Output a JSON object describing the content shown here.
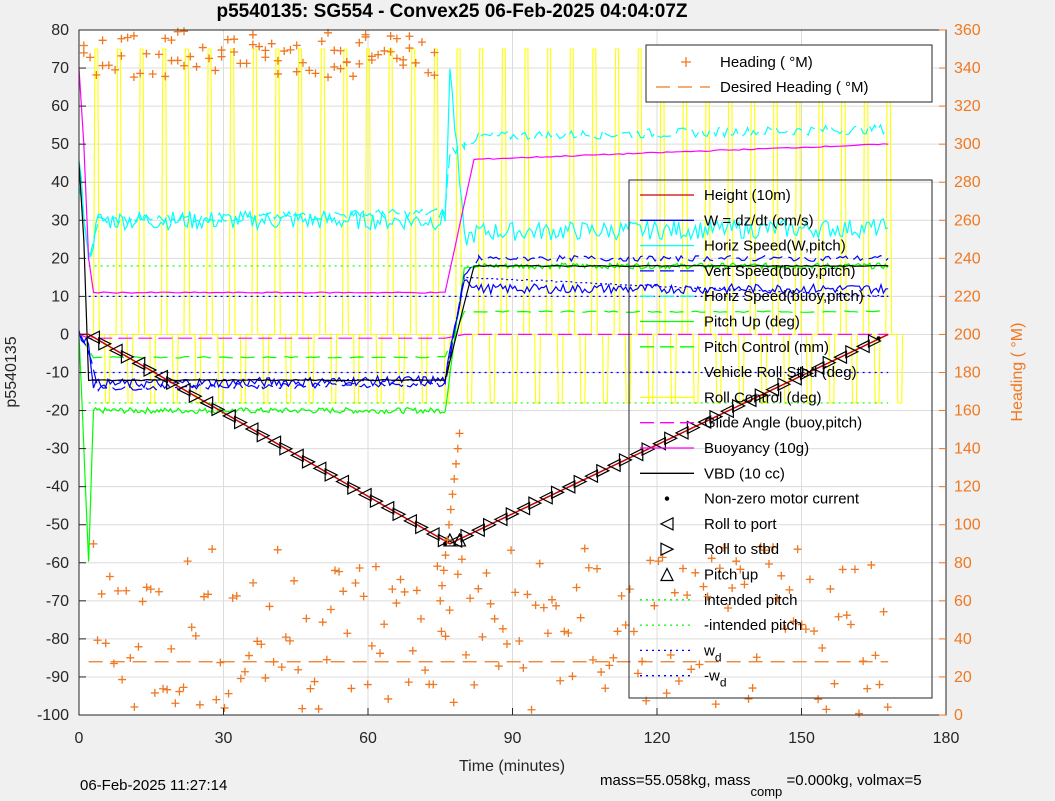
{
  "chart_data": {
    "type": "line",
    "title": "p5540135: SG554 - Convex25 06-Feb-2025 04:04:07Z",
    "xlabel": "Time (minutes)",
    "ylabel": "p5540135",
    "y2label": "Heading (  °M)",
    "xlim": [
      0,
      180
    ],
    "ylim": [
      -100,
      80
    ],
    "y2lim": [
      0,
      360
    ],
    "xticks": [
      0,
      30,
      60,
      90,
      120,
      150,
      180
    ],
    "yticks": [
      -100,
      -90,
      -80,
      -70,
      -60,
      -50,
      -40,
      -30,
      -20,
      -10,
      0,
      10,
      20,
      30,
      40,
      50,
      60,
      70,
      80
    ],
    "y2ticks": [
      0,
      20,
      40,
      60,
      80,
      100,
      120,
      140,
      160,
      180,
      200,
      220,
      240,
      260,
      280,
      300,
      320,
      340,
      360
    ],
    "grid": true,
    "heading_legend": [
      {
        "label": "Heading (  °M)",
        "color": "#f07820",
        "style": "plus"
      },
      {
        "label": "Desired Heading (   °M)",
        "color": "#f07820",
        "style": "dash"
      }
    ],
    "legend": [
      {
        "label": "Height (10m)",
        "color": "#d00000",
        "style": "solid"
      },
      {
        "label": "W = dz/dt (cm/s)",
        "color": "#0000ff",
        "style": "solid"
      },
      {
        "label": "Horiz Speed(W,pitch)",
        "color": "#00ffff",
        "style": "solid"
      },
      {
        "label": "Vert Speed(buoy,pitch)",
        "color": "#0000ff",
        "style": "dash"
      },
      {
        "label": "Horiz Speed(buoy,pitch)",
        "color": "#00ffff",
        "style": "dash"
      },
      {
        "label": "Pitch Up (deg)",
        "color": "#00ff00",
        "style": "solid"
      },
      {
        "label": "Pitch Control (mm)",
        "color": "#00ff00",
        "style": "dash"
      },
      {
        "label": "Vehicle Roll Stbd (deg)",
        "color": "#0000ff",
        "style": "dot"
      },
      {
        "label": "Roll Control (deg)",
        "color": "#ffff00",
        "style": "solid"
      },
      {
        "label": "Glide Angle (buoy,pitch)",
        "color": "#ff00ff",
        "style": "dash"
      },
      {
        "label": "Buoyancy (10g)",
        "color": "#ff00ff",
        "style": "solid"
      },
      {
        "label": "VBD (10 cc)",
        "color": "#000000",
        "style": "solid"
      },
      {
        "label": "Non-zero motor current",
        "color": "#000000",
        "style": "point"
      },
      {
        "label": "Roll to port",
        "color": "#000000",
        "style": "triangle-left"
      },
      {
        "label": "Roll to stbd",
        "color": "#000000",
        "style": "triangle-right"
      },
      {
        "label": "Pitch up",
        "color": "#000000",
        "style": "triangle-up"
      },
      {
        "label": "intended pitch",
        "color": "#00ff00",
        "style": "dot"
      },
      {
        "label": "-intended pitch",
        "color": "#00ff00",
        "style": "dot"
      },
      {
        "label": "w",
        "sub": "d",
        "color": "#0000ff",
        "style": "dot"
      },
      {
        "label": "-w",
        "sub": "d",
        "color": "#0000ff",
        "style": "dot"
      }
    ],
    "series": {
      "height": {
        "x": [
          0,
          2,
          77,
          168
        ],
        "y": [
          0,
          0,
          -55,
          0
        ]
      },
      "w_dzdt": {
        "x": [
          0,
          2,
          3,
          76,
          80,
          83,
          168
        ],
        "y": [
          0,
          -2,
          -13,
          -12,
          15,
          12,
          12
        ]
      },
      "horiz_speed_w_pitch": {
        "x": [
          0,
          2,
          4,
          76,
          77,
          80,
          83,
          168
        ],
        "y": [
          45,
          20,
          30,
          30,
          70,
          25,
          27,
          28
        ]
      },
      "vert_speed_buoy_pitch": {
        "x": [
          0,
          2,
          4,
          76,
          80,
          83,
          168
        ],
        "y": [
          0,
          -4,
          -14,
          -13,
          15,
          20,
          20
        ]
      },
      "horiz_speed_buoy_pitch": {
        "x": [
          0,
          2,
          4,
          76,
          77,
          80,
          83,
          168
        ],
        "y": [
          40,
          20,
          30,
          32,
          48,
          50,
          52,
          54
        ]
      },
      "pitch_up": {
        "x": [
          0,
          2,
          3,
          76,
          80,
          83,
          168
        ],
        "y": [
          0,
          -60,
          -20,
          -20,
          18,
          18,
          18
        ]
      },
      "pitch_control": {
        "x": [
          0,
          3,
          76,
          80,
          83,
          168
        ],
        "y": [
          0,
          -6,
          -6,
          6,
          6,
          6
        ]
      },
      "vbd": {
        "x": [
          0,
          1,
          2,
          76,
          82,
          168
        ],
        "y": [
          45,
          25,
          -12,
          -12,
          18,
          18
        ]
      },
      "buoyancy": {
        "x": [
          0,
          1,
          2,
          3,
          76,
          82,
          168
        ],
        "y": [
          70,
          50,
          20,
          11,
          11,
          46,
          50
        ]
      },
      "glide_angle": {
        "x": [
          0,
          2,
          76,
          80,
          168
        ],
        "y": [
          0,
          -1,
          -1,
          0,
          0
        ]
      },
      "intended_pitch": 18,
      "neg_intended_pitch": -18,
      "wd": 10,
      "neg_wd": -10,
      "roll_control": {
        "x_start": 3,
        "x_end": 168,
        "period": 4.7,
        "high": 75,
        "low": -18,
        "mid": 0
      },
      "vehicle_roll_stbd": {
        "x": [
          3,
          76,
          80,
          168
        ],
        "y": [
          -12,
          -12,
          15,
          10
        ]
      },
      "heading": {
        "descent_high": [
          335,
          360
        ],
        "ascent_low": [
          0,
          90
        ],
        "desired": 28
      }
    }
  },
  "footer": {
    "timestamp": "06-Feb-2025 11:27:14",
    "mass_text": "mass=55.058kg, mass",
    "comp_sub": "comp",
    "rest": " =0.000kg, volmax=5"
  }
}
